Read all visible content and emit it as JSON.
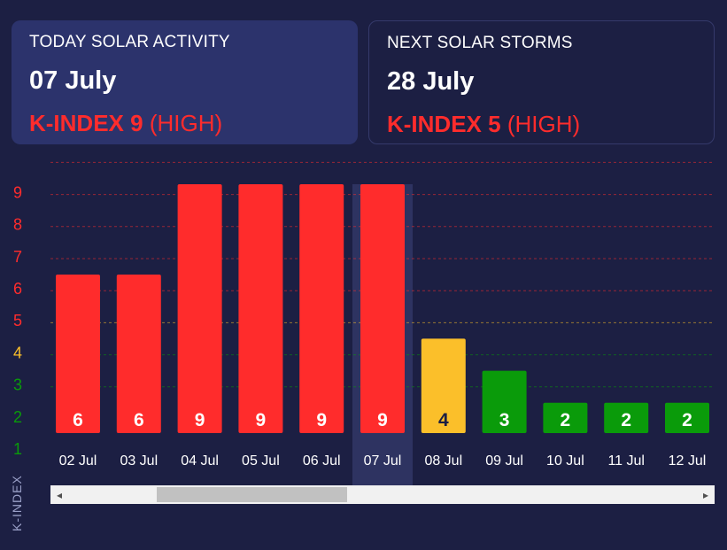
{
  "today": {
    "title": "TODAY SOLAR ACTIVITY",
    "date": "07 July",
    "kindex_label": "K-INDEX 9",
    "level": "(HIGH)"
  },
  "next": {
    "title": "NEXT SOLAR STORMS",
    "date": "28 July",
    "kindex_label": "K-INDEX 5",
    "level": "(HIGH)"
  },
  "colors": {
    "background": "#1c1f43",
    "card_today": "#2c336c",
    "high": "#ff2c2c",
    "moderate": "#fbbf2a",
    "low": "#0a9b0a",
    "highlight": "#2e3361",
    "scroll_track": "#f1f1f1",
    "scroll_thumb": "#c1c1c1"
  },
  "chart_data": {
    "type": "bar",
    "title": "",
    "ylabel": "K-INDEX",
    "ylim": [
      1,
      9
    ],
    "yticks": [
      "1",
      "2",
      "3",
      "4",
      "5",
      "6",
      "7",
      "8",
      "9"
    ],
    "categories": [
      "02 Jul",
      "03 Jul",
      "04 Jul",
      "05 Jul",
      "06 Jul",
      "07 Jul",
      "08 Jul",
      "09 Jul",
      "10 Jul",
      "11 Jul",
      "12 Jul"
    ],
    "values": [
      6,
      6,
      9,
      9,
      9,
      9,
      4,
      3,
      2,
      2,
      2
    ],
    "highlighted_category": "07 Jul"
  },
  "scrollbar": {
    "left_arrow": "◂",
    "right_arrow": "▸"
  }
}
